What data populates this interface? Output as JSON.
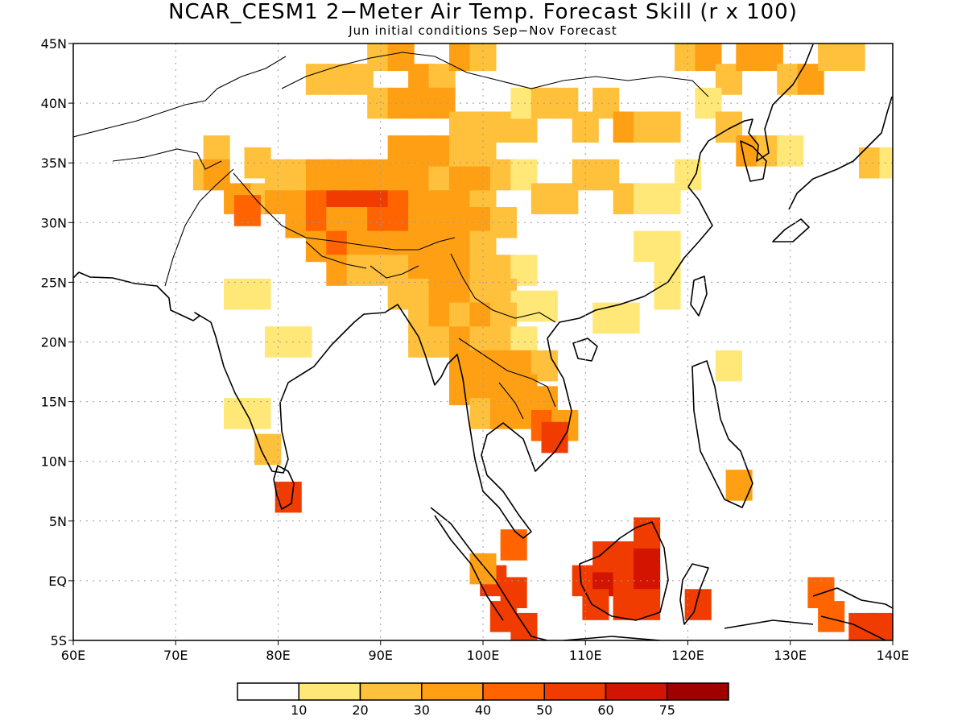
{
  "title": "NCAR_CESM1 2−Meter Air Temp. Forecast Skill (r x 100)",
  "subtitle": "Jun initial conditions  Sep−Nov Forecast",
  "axes": {
    "lon_ticks": [
      "60E",
      "70E",
      "80E",
      "90E",
      "100E",
      "110E",
      "120E",
      "130E",
      "140E"
    ],
    "lat_ticks": [
      "45N",
      "40N",
      "35N",
      "30N",
      "25N",
      "20N",
      "15N",
      "10N",
      "5N",
      "EQ",
      "5S"
    ]
  },
  "colorbar": {
    "colors": [
      "#ffffff",
      "#ffe878",
      "#ffc03c",
      "#ffa014",
      "#ff6400",
      "#f03c00",
      "#d21400",
      "#a00000"
    ],
    "labels": [
      "10",
      "20",
      "30",
      "40",
      "50",
      "60",
      "75"
    ]
  },
  "map_data": {
    "region": {
      "lon_min": 60,
      "lon_max": 140,
      "lat_min": -5,
      "lat_max": 45
    },
    "variable": "2-Meter Air Temp. Forecast Skill (r x 100)",
    "cells": [
      [
        78,
        32,
        2
      ],
      [
        80,
        32,
        3
      ],
      [
        82,
        32,
        3
      ],
      [
        84,
        32,
        4
      ],
      [
        86,
        32,
        5
      ],
      [
        88,
        32,
        5
      ],
      [
        90,
        32,
        5
      ],
      [
        92,
        32,
        4
      ],
      [
        94,
        32,
        3
      ],
      [
        96,
        32,
        3
      ],
      [
        98,
        32,
        3
      ],
      [
        100,
        32,
        2
      ],
      [
        82,
        30,
        3
      ],
      [
        84,
        30,
        4
      ],
      [
        86,
        30,
        3
      ],
      [
        88,
        30,
        3
      ],
      [
        90,
        30,
        4
      ],
      [
        92,
        30,
        4
      ],
      [
        94,
        30,
        3
      ],
      [
        96,
        30,
        3
      ],
      [
        98,
        30,
        3
      ],
      [
        100,
        30,
        3
      ],
      [
        102,
        30,
        2
      ],
      [
        80,
        34,
        2
      ],
      [
        82,
        34,
        2
      ],
      [
        84,
        34,
        3
      ],
      [
        86,
        34,
        3
      ],
      [
        88,
        34,
        3
      ],
      [
        90,
        34,
        3
      ],
      [
        92,
        34,
        3
      ],
      [
        94,
        34,
        3
      ],
      [
        96,
        34,
        2
      ],
      [
        98,
        34,
        3
      ],
      [
        100,
        34,
        3
      ],
      [
        102,
        34,
        2
      ],
      [
        76,
        32,
        3
      ],
      [
        77,
        31,
        4
      ],
      [
        78,
        35,
        2
      ],
      [
        74,
        36,
        2
      ],
      [
        73,
        34,
        2
      ],
      [
        74,
        34,
        3
      ],
      [
        84,
        28,
        3
      ],
      [
        86,
        28,
        4
      ],
      [
        88,
        28,
        3
      ],
      [
        90,
        28,
        3
      ],
      [
        92,
        28,
        3
      ],
      [
        94,
        28,
        3
      ],
      [
        96,
        28,
        3
      ],
      [
        98,
        28,
        3
      ],
      [
        100,
        28,
        2
      ],
      [
        86,
        26,
        3
      ],
      [
        88,
        26,
        2
      ],
      [
        90,
        26,
        2
      ],
      [
        92,
        26,
        2
      ],
      [
        94,
        26,
        3
      ],
      [
        96,
        26,
        3
      ],
      [
        98,
        26,
        3
      ],
      [
        100,
        26,
        2
      ],
      [
        102,
        26,
        2
      ],
      [
        104,
        26,
        1
      ],
      [
        92,
        24,
        2
      ],
      [
        94,
        24,
        2
      ],
      [
        96,
        24,
        3
      ],
      [
        98,
        24,
        3
      ],
      [
        100,
        24,
        2
      ],
      [
        102,
        24,
        2
      ],
      [
        104,
        23,
        1
      ],
      [
        106,
        23,
        1
      ],
      [
        94,
        22,
        2
      ],
      [
        96,
        22,
        3
      ],
      [
        98,
        22,
        2
      ],
      [
        100,
        22,
        3
      ],
      [
        102,
        22,
        2
      ],
      [
        94,
        20,
        2
      ],
      [
        96,
        20,
        2
      ],
      [
        98,
        20,
        3
      ],
      [
        100,
        20,
        2
      ],
      [
        102,
        20,
        2
      ],
      [
        104,
        20,
        1
      ],
      [
        98,
        18,
        3
      ],
      [
        100,
        18,
        3
      ],
      [
        102,
        18,
        3
      ],
      [
        104,
        18,
        3
      ],
      [
        106,
        18,
        2
      ],
      [
        98,
        16,
        3
      ],
      [
        100,
        16,
        3
      ],
      [
        102,
        16,
        3
      ],
      [
        104,
        16,
        3
      ],
      [
        106,
        15,
        3
      ],
      [
        100,
        14,
        2
      ],
      [
        102,
        14,
        3
      ],
      [
        104,
        14,
        3
      ],
      [
        106,
        13,
        4
      ],
      [
        108,
        13,
        3
      ],
      [
        107,
        12,
        5
      ],
      [
        84,
        42,
        2
      ],
      [
        86,
        42,
        2
      ],
      [
        88,
        42,
        2
      ],
      [
        90,
        44,
        2
      ],
      [
        92,
        44,
        3
      ],
      [
        94,
        42,
        3
      ],
      [
        96,
        42,
        2
      ],
      [
        98,
        44,
        3
      ],
      [
        100,
        44,
        2
      ],
      [
        90,
        40,
        2
      ],
      [
        92,
        40,
        3
      ],
      [
        94,
        40,
        3
      ],
      [
        96,
        40,
        3
      ],
      [
        98,
        38,
        2
      ],
      [
        100,
        38,
        2
      ],
      [
        102,
        38,
        2
      ],
      [
        104,
        38,
        2
      ],
      [
        92,
        36,
        3
      ],
      [
        94,
        36,
        3
      ],
      [
        96,
        36,
        3
      ],
      [
        98,
        36,
        2
      ],
      [
        100,
        36,
        2
      ],
      [
        104,
        40,
        1
      ],
      [
        106,
        40,
        2
      ],
      [
        108,
        40,
        2
      ],
      [
        110,
        38,
        2
      ],
      [
        112,
        40,
        2
      ],
      [
        114,
        38,
        3
      ],
      [
        116,
        38,
        2
      ],
      [
        118,
        38,
        2
      ],
      [
        120,
        44,
        2
      ],
      [
        122,
        44,
        3
      ],
      [
        124,
        42,
        2
      ],
      [
        126,
        44,
        3
      ],
      [
        128,
        44,
        3
      ],
      [
        130,
        42,
        2
      ],
      [
        132,
        42,
        3
      ],
      [
        134,
        44,
        2
      ],
      [
        136,
        44,
        2
      ],
      [
        104,
        34,
        1
      ],
      [
        106,
        32,
        2
      ],
      [
        108,
        32,
        2
      ],
      [
        110,
        34,
        2
      ],
      [
        112,
        34,
        2
      ],
      [
        114,
        32,
        2
      ],
      [
        116,
        32,
        1
      ],
      [
        118,
        32,
        1
      ],
      [
        120,
        34,
        1
      ],
      [
        116,
        28,
        1
      ],
      [
        118,
        28,
        1
      ],
      [
        118,
        26,
        1
      ],
      [
        118,
        24,
        1
      ],
      [
        114,
        22,
        1
      ],
      [
        112,
        22,
        1
      ],
      [
        122,
        40,
        1
      ],
      [
        124,
        38,
        2
      ],
      [
        126,
        36,
        3
      ],
      [
        128,
        36,
        2
      ],
      [
        130,
        36,
        1
      ],
      [
        138,
        35,
        2
      ],
      [
        140,
        35,
        1
      ],
      [
        76,
        24,
        1
      ],
      [
        78,
        24,
        1
      ],
      [
        80,
        20,
        1
      ],
      [
        82,
        20,
        1
      ],
      [
        76,
        14,
        1
      ],
      [
        78,
        14,
        1
      ],
      [
        79,
        11,
        2
      ],
      [
        81,
        7,
        5
      ],
      [
        103,
        3,
        4
      ],
      [
        101,
        0,
        5
      ],
      [
        103,
        -1,
        5
      ],
      [
        102,
        -3,
        5
      ],
      [
        104,
        -4,
        5
      ],
      [
        100,
        1,
        3
      ],
      [
        110,
        0,
        5
      ],
      [
        112,
        0,
        6
      ],
      [
        114,
        0,
        5
      ],
      [
        116,
        0,
        6
      ],
      [
        112,
        2,
        5
      ],
      [
        114,
        2,
        5
      ],
      [
        116,
        2,
        6
      ],
      [
        116,
        4,
        5
      ],
      [
        114,
        -2,
        5
      ],
      [
        116,
        -2,
        5
      ],
      [
        111,
        -2,
        5
      ],
      [
        121,
        -2,
        5
      ],
      [
        125,
        8,
        3
      ],
      [
        133,
        -1,
        4
      ],
      [
        134,
        -3,
        4
      ],
      [
        137,
        -4,
        5
      ],
      [
        139,
        -4,
        5
      ],
      [
        124,
        18,
        1
      ]
    ]
  }
}
